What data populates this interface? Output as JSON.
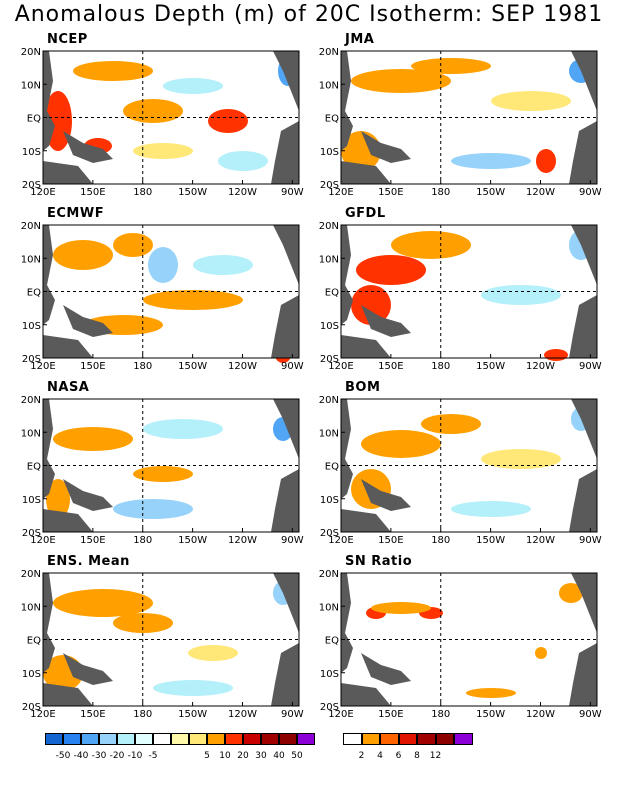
{
  "title": "Anomalous Depth (m) of 20C Isotherm: SEP 1981",
  "x_ticks": [
    "120E",
    "150E",
    "180",
    "150W",
    "120W",
    "90W"
  ],
  "y_ticks": [
    "20N",
    "10N",
    "EQ",
    "10S",
    "20S"
  ],
  "panels": [
    {
      "label": "NCEP"
    },
    {
      "label": "JMA"
    },
    {
      "label": "ECMWF"
    },
    {
      "label": "GFDL"
    },
    {
      "label": "NASA"
    },
    {
      "label": "BOM"
    },
    {
      "label": "ENS. Mean"
    },
    {
      "label": "SN Ratio"
    }
  ],
  "colorbar_anomaly": {
    "tick_labels": [
      "-50",
      "-40",
      "-30",
      "-20",
      "-10",
      "-5",
      "5",
      "10",
      "20",
      "30",
      "40",
      "50"
    ],
    "colors": [
      "#1464d2",
      "#2882f0",
      "#50a5f5",
      "#96d2fa",
      "#b4f0fa",
      "#e1ffff",
      "#ffffff",
      "#fffaaa",
      "#ffe878",
      "#ffa000",
      "#ff3200",
      "#c80000",
      "#a00000",
      "#8c0000",
      "#8c00d7"
    ]
  },
  "colorbar_snratio": {
    "tick_labels": [
      "2",
      "4",
      "6",
      "8",
      "12"
    ],
    "colors": [
      "#ffffff",
      "#ffa000",
      "#ff6400",
      "#e11400",
      "#a00000",
      "#8c0000",
      "#8c00d7"
    ]
  },
  "colors": {
    "land": "#5a5a5a",
    "warm_light": "#ffe878",
    "warm": "#ffa000",
    "warm_strong": "#ff3200",
    "cool_light": "#b4f0fa",
    "cool": "#96d2fa",
    "cool_strong": "#50a5f5"
  }
}
